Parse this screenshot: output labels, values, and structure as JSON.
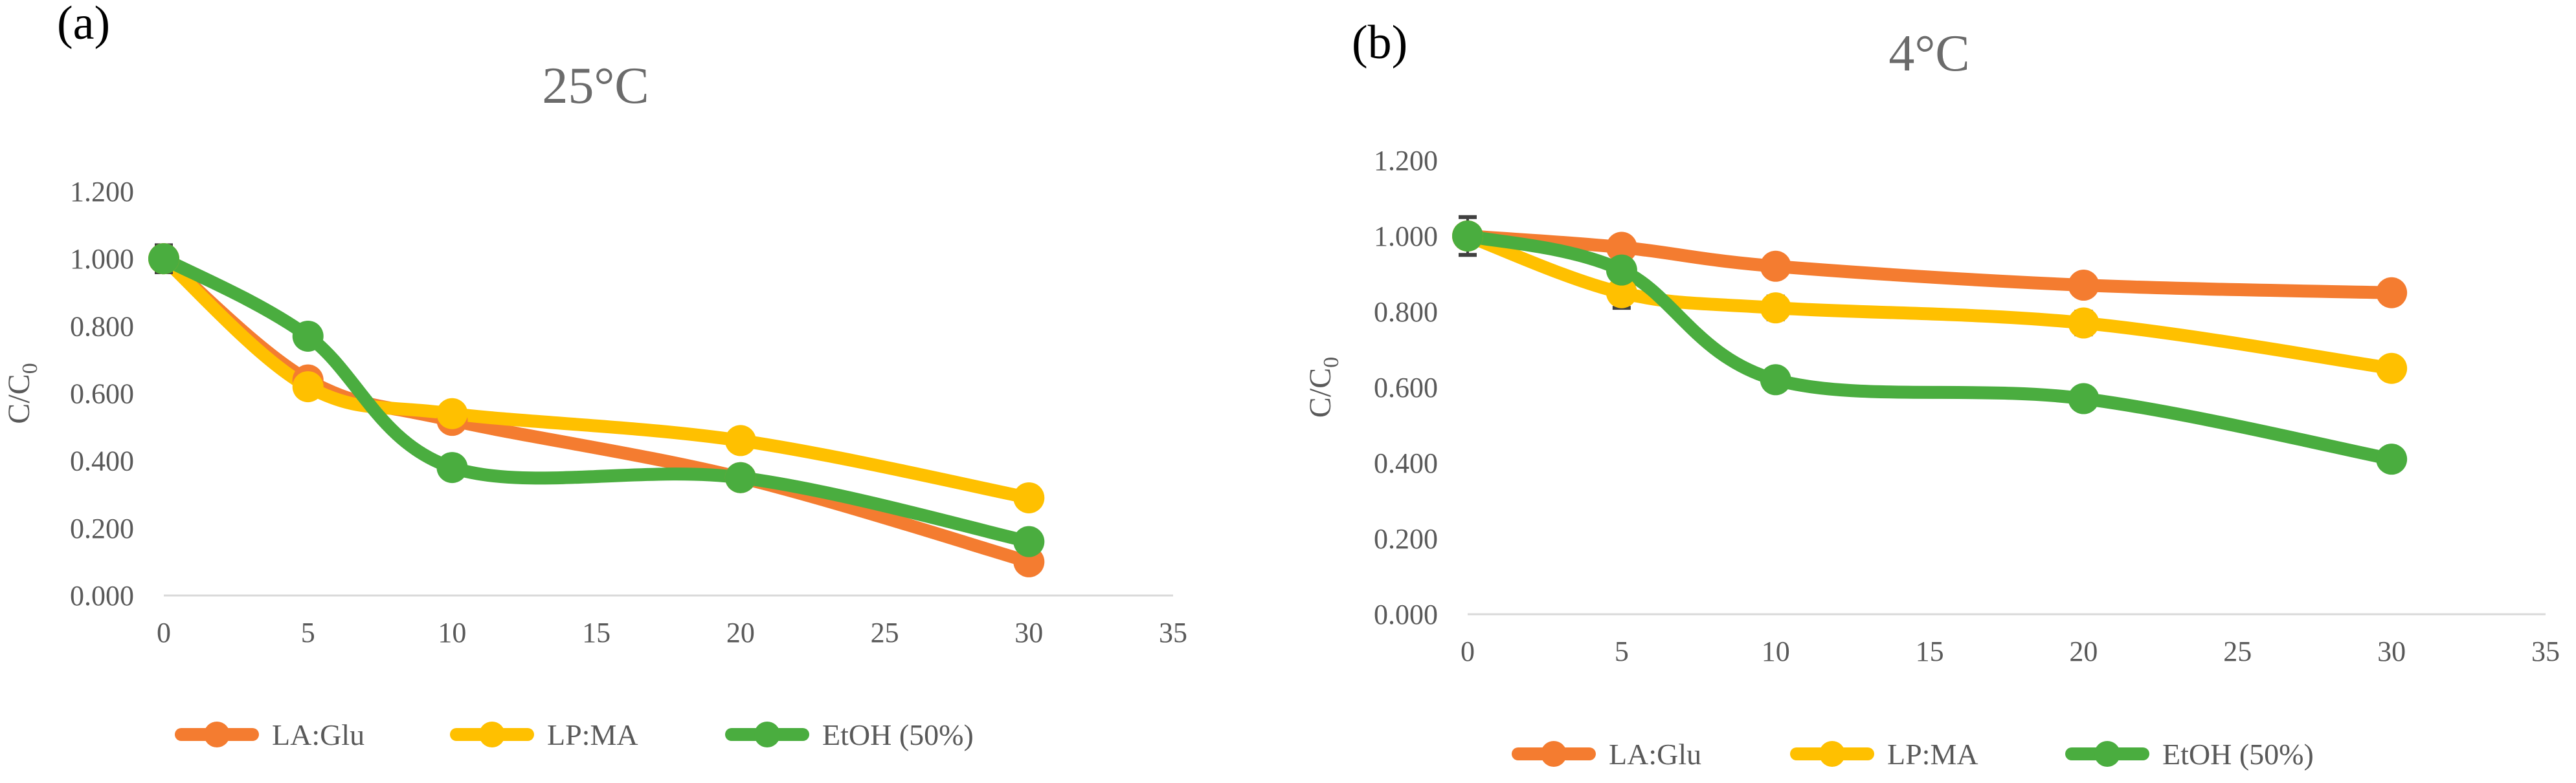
{
  "chart_data": [
    {
      "panel": "(a)",
      "type": "line",
      "title": "25°C",
      "xlabel": "",
      "ylabel_main": "C/C",
      "ylabel_sub": "0",
      "xlim": [
        0,
        35
      ],
      "ylim": [
        0,
        1.2
      ],
      "xticks": [
        "0",
        "5",
        "10",
        "15",
        "20",
        "25",
        "30",
        "35"
      ],
      "yticks": [
        "0.000",
        "0.200",
        "0.400",
        "0.600",
        "0.800",
        "1.000",
        "1.200"
      ],
      "x": [
        0,
        5,
        10,
        20,
        30
      ],
      "series": [
        {
          "name": "LA:Glu",
          "color": "#f47c30",
          "values": [
            1.0,
            0.64,
            0.52,
            0.35,
            0.1
          ],
          "errors": [
            0,
            0,
            0,
            0,
            0
          ]
        },
        {
          "name": "LP:MA",
          "color": "#ffc000",
          "values": [
            1.0,
            0.62,
            0.54,
            0.46,
            0.29
          ],
          "errors": [
            0,
            0,
            0,
            0,
            0
          ]
        },
        {
          "name": "EtOH (50%)",
          "color": "#4aad3f",
          "values": [
            1.0,
            0.77,
            0.38,
            0.35,
            0.16
          ],
          "errors": [
            0.04,
            0.03,
            0,
            0,
            0
          ]
        }
      ],
      "legend": "bottom"
    },
    {
      "panel": "(b)",
      "type": "line",
      "title": "4°C",
      "xlabel": "",
      "ylabel_main": "C/C",
      "ylabel_sub": "0",
      "xlim": [
        0,
        35
      ],
      "ylim": [
        0,
        1.2
      ],
      "xticks": [
        "0",
        "5",
        "10",
        "15",
        "20",
        "25",
        "30",
        "35"
      ],
      "yticks": [
        "0.000",
        "0.200",
        "0.400",
        "0.600",
        "0.800",
        "1.000",
        "1.200"
      ],
      "x": [
        0,
        5,
        10,
        20,
        30
      ],
      "series": [
        {
          "name": "LA:Glu",
          "color": "#f47c30",
          "values": [
            1.0,
            0.97,
            0.92,
            0.87,
            0.85
          ],
          "errors": [
            0,
            0,
            0,
            0,
            0
          ]
        },
        {
          "name": "LP:MA",
          "color": "#ffc000",
          "values": [
            1.0,
            0.85,
            0.81,
            0.77,
            0.65
          ],
          "errors": [
            0,
            0.04,
            0.03,
            0.03,
            0.02
          ]
        },
        {
          "name": "EtOH (50%)",
          "color": "#4aad3f",
          "values": [
            1.0,
            0.91,
            0.62,
            0.57,
            0.41
          ],
          "errors": [
            0.05,
            0,
            0.02,
            0,
            0
          ]
        }
      ],
      "legend": "bottom"
    }
  ]
}
